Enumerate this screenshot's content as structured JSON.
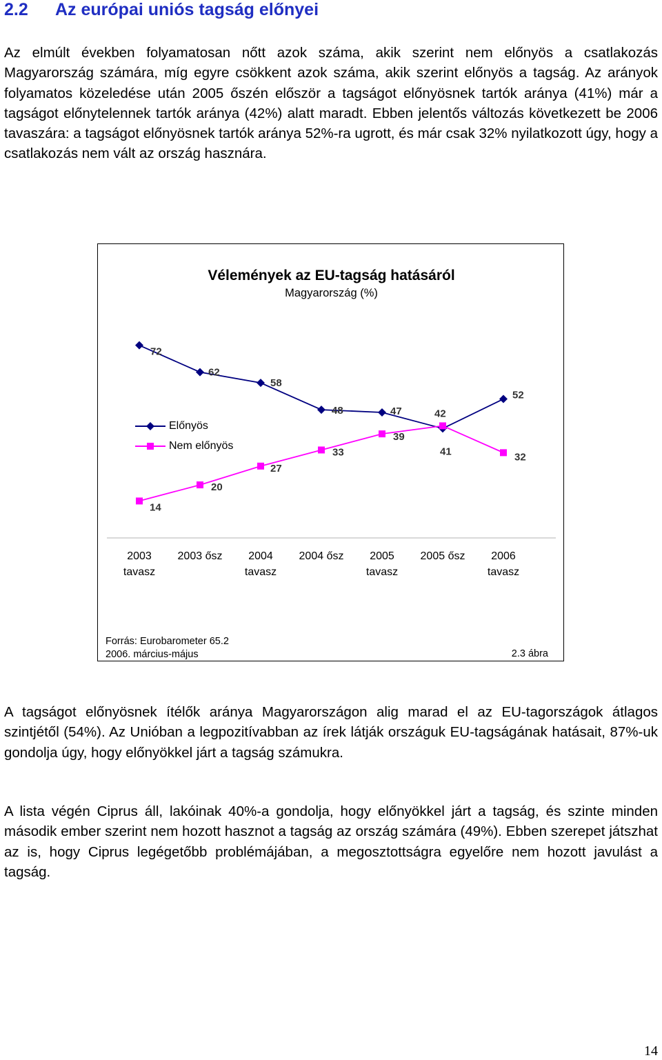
{
  "section": {
    "number": "2.2",
    "title": "Az európai uniós tagság előnyei"
  },
  "paragraphs": {
    "p1": "Az elmúlt években folyamatosan nőtt azok száma, akik szerint nem előnyös a csatlakozás Magyarország számára, míg egyre csökkent azok száma, akik szerint előnyös a tagság. Az arányok folyamatos közeledése után 2005 őszén először a tagságot előnyösnek tartók aránya (41%) már a tagságot előnytelennek tartók aránya (42%) alatt maradt. Ebben jelentős változás következett be 2006 tavaszára: a tagságot előnyösnek tartók aránya 52%-ra ugrott, és már csak 32% nyilatkozott úgy, hogy a csatlakozás nem vált az ország hasznára.",
    "p2": "A tagságot előnyösnek ítélők aránya Magyarországon alig marad el az EU-tagországok átlagos szintjétől (54%). Az Unióban a legpozitívabban az írek látják országuk EU-tagságának hatásait, 87%-uk gondolja úgy, hogy előnyökkel járt a tagság számukra.",
    "p3": "A lista végén Ciprus áll, lakóinak 40%-a gondolja, hogy előnyökkel járt a tagság, és szinte minden második ember szerint nem hozott hasznot a tagság az ország számára (49%). Ebben szerepet játszhat az is, hogy Ciprus legégetőbb problémájában, a megosztottságra egyelőre nem hozott javulást a tagság."
  },
  "figure": {
    "source_line1": "Forrás: Eurobarometer 65.2",
    "source_line2": "2006. március-május",
    "label": "2.3 ábra"
  },
  "chart_data": {
    "type": "line",
    "title": "Vélemények az EU-tagság hatásáról",
    "subtitle": "Magyarország (%)",
    "categories": [
      "2003\ntavasz",
      "2003 ősz",
      "2004\ntavasz",
      "2004 ősz",
      "2005\ntavasz",
      "2005 ősz",
      "2006\ntavasz"
    ],
    "series": [
      {
        "name": "Előnyös",
        "values": [
          72,
          62,
          58,
          48,
          47,
          41,
          52
        ],
        "color": "#000080",
        "marker": "diamond"
      },
      {
        "name": "Nem előnyös",
        "values": [
          14,
          20,
          27,
          33,
          39,
          42,
          32
        ],
        "color": "#ff00ff",
        "marker": "square"
      }
    ],
    "ylim": [
      10,
      75
    ],
    "grid": false,
    "legend": "left-middle",
    "data_labels": true
  },
  "page_number": "14"
}
